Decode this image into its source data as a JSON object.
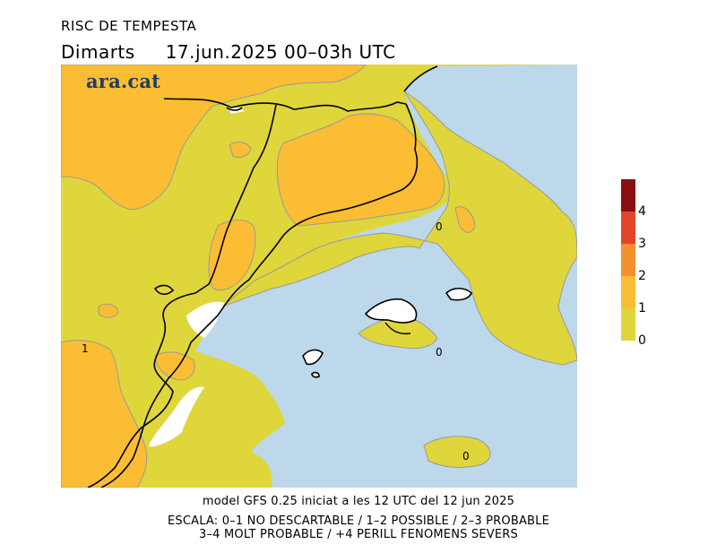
{
  "title": "RISC DE TEMPESTA",
  "day": "Dimarts",
  "date_time": "17.jun.2025 00–03h UTC",
  "logo": "ara.cat",
  "footer": {
    "model": "model GFS 0.25 iniciat a les 12 UTC del 12 jun 2025",
    "scale_line1": "ESCALA: 0–1 NO DESCARTABLE / 1–2 POSSIBLE / 2–3 PROBABLE",
    "scale_line2": "3–4 MOLT PROBABLE / +4 PERILL FENOMENS SEVERS"
  },
  "legend": {
    "labels": [
      "4",
      "3",
      "2",
      "1",
      "0"
    ],
    "colors": [
      "#8b0e12",
      "#e4442a",
      "#f4902e",
      "#fbbd33",
      "#dfd63c"
    ]
  },
  "map_labels": {
    "west": "1",
    "gulf": "0",
    "mallorca": "0",
    "south": "0"
  },
  "colors": {
    "sea": "#bcd8ea",
    "risk_0_1": "#dfd63c",
    "risk_1_2": "#fbbd33",
    "border": "#000000",
    "contour": "#9a9a9a"
  }
}
